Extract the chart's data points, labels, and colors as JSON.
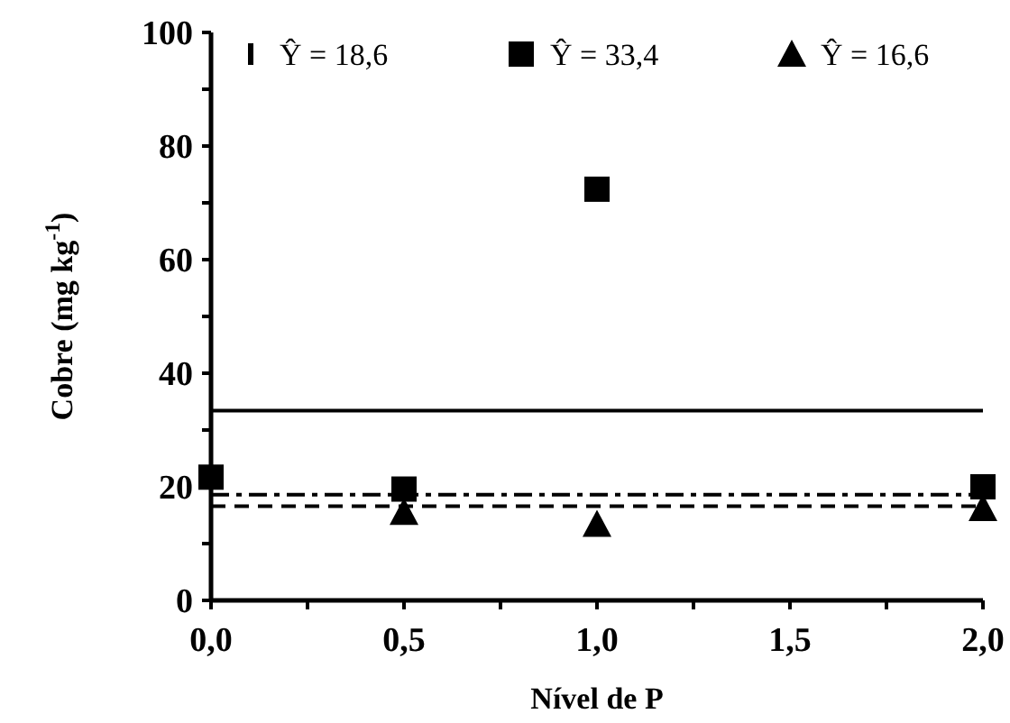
{
  "chart_data": {
    "type": "scatter",
    "xlabel": "Nível de P",
    "ylabel": "Cobre (mg kg$^{-1}$)",
    "x": [
      0,
      0.5,
      1,
      2
    ],
    "series": [
      {
        "name": "Ŷ = 18,6",
        "color": "#000000",
        "marker": "none",
        "values": [
          null,
          null,
          null,
          null
        ]
      },
      {
        "name": "Ŷ = 33,4",
        "color": "#000000",
        "marker": "square",
        "values": [
          21.7,
          19.6,
          72.4,
          20
        ]
      },
      {
        "name": "Ŷ = 16,6",
        "color": "#000000",
        "marker": "triangle",
        "values": [
          null,
          15.5,
          13.4,
          16.2
        ]
      }
    ],
    "ref_lines": [
      {
        "axis": "y",
        "value": 18.6,
        "color": "#000000",
        "line_style": "dashdot"
      },
      {
        "axis": "y",
        "value": 33.4,
        "color": "#000000",
        "line_style": "solid"
      },
      {
        "axis": "y",
        "value": 16.6,
        "color": "#000000",
        "line_style": "dashed"
      }
    ],
    "xlim": [
      0,
      2
    ],
    "ylim": [
      0,
      100
    ],
    "xticks": [
      {
        "value": 0,
        "label": "0,0"
      },
      {
        "value": 0.25,
        "label": null
      },
      {
        "value": 0.5,
        "label": "0,5"
      },
      {
        "value": 0.75,
        "label": null
      },
      {
        "value": 1,
        "label": "1,0"
      },
      {
        "value": 1.25,
        "label": null
      },
      {
        "value": 1.5,
        "label": "1,5"
      },
      {
        "value": 1.75,
        "label": null
      },
      {
        "value": 2,
        "label": "2,0"
      }
    ],
    "yticks": [
      0,
      {
        "value": 10,
        "label": null
      },
      20,
      {
        "value": 30,
        "label": null
      },
      40,
      {
        "value": 50,
        "label": null
      },
      60,
      {
        "value": 70,
        "label": null
      },
      80,
      {
        "value": 90,
        "label": null
      },
      100
    ],
    "grid": false,
    "legend": "top"
  }
}
